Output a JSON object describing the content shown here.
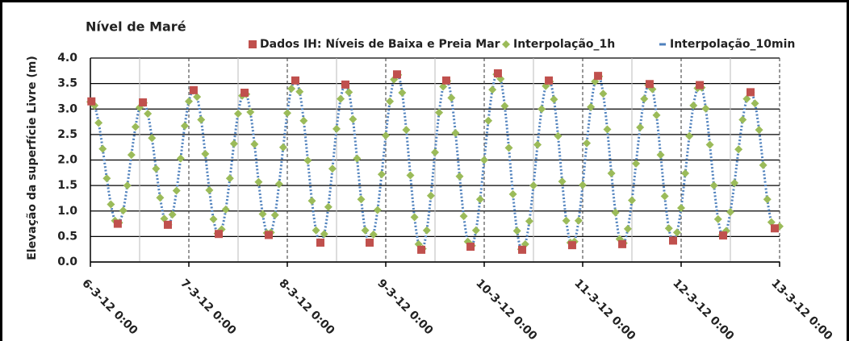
{
  "chart_data": {
    "type": "line",
    "title": "Nível de Maré",
    "y_label": "Elevação da superfície Livre (m)",
    "ylim": [
      0,
      4
    ],
    "yticks": [
      {
        "value": 0,
        "label": "0.0"
      },
      0.5,
      {
        "value": 1,
        "label": "1.0"
      },
      1.5,
      {
        "value": 2,
        "label": "2.0"
      },
      2.5,
      {
        "value": 3,
        "label": "3.0"
      },
      3.5,
      {
        "value": 4,
        "label": "4.0"
      }
    ],
    "xlim": [
      "6-3-12 0:00",
      "13-3-12 0:00"
    ],
    "xticks": [
      "6-3-12 0:00",
      "7-3-12 0:00",
      "8-3-12 0:00",
      "9-3-12 0:00",
      "10-3-12 0:00",
      "11-3-12 0:00",
      "12-3-12 0:00",
      "13-3-12 0:00"
    ],
    "xminorticks": [
      "6-3-12 12:00",
      "7-3-12 12:00",
      "8-3-12 12:00",
      "9-3-12 12:00",
      "10-3-12 12:00",
      "11-3-12 12:00",
      "12-3-12 12:00"
    ],
    "grid": true,
    "x": [
      "6-3-12 0:00",
      "6-3-12 1:00",
      "6-3-12 2:00",
      "6-3-12 3:00",
      "6-3-12 4:00",
      "6-3-12 5:00",
      "6-3-12 6:00",
      "6-3-12 7:00",
      "6-3-12 8:00",
      "6-3-12 9:00",
      "6-3-12 10:00",
      "6-3-12 11:00",
      "6-3-12 12:00",
      "6-3-12 13:00",
      "6-3-12 14:00",
      "6-3-12 15:00",
      "6-3-12 16:00",
      "6-3-12 17:00",
      "6-3-12 18:00",
      "6-3-12 19:00",
      "6-3-12 20:00",
      "6-3-12 21:00",
      "6-3-12 22:00",
      "6-3-12 23:00",
      "7-3-12 0:00",
      "7-3-12 1:00",
      "7-3-12 2:00",
      "7-3-12 3:00",
      "7-3-12 4:00",
      "7-3-12 5:00",
      "7-3-12 6:00",
      "7-3-12 7:00",
      "7-3-12 8:00",
      "7-3-12 9:00",
      "7-3-12 10:00",
      "7-3-12 11:00",
      "7-3-12 12:00",
      "7-3-12 13:00",
      "7-3-12 14:00",
      "7-3-12 15:00",
      "7-3-12 16:00",
      "7-3-12 17:00",
      "7-3-12 18:00",
      "7-3-12 19:00",
      "7-3-12 20:00",
      "7-3-12 21:00",
      "7-3-12 22:00",
      "7-3-12 23:00",
      "8-3-12 0:00",
      "8-3-12 1:00",
      "8-3-12 2:00",
      "8-3-12 3:00",
      "8-3-12 4:00",
      "8-3-12 5:00",
      "8-3-12 6:00",
      "8-3-12 7:00",
      "8-3-12 8:00",
      "8-3-12 9:00",
      "8-3-12 10:00",
      "8-3-12 11:00",
      "8-3-12 12:00",
      "8-3-12 13:00",
      "8-3-12 14:00",
      "8-3-12 15:00",
      "8-3-12 16:00",
      "8-3-12 17:00",
      "8-3-12 18:00",
      "8-3-12 19:00",
      "8-3-12 20:00",
      "8-3-12 21:00",
      "8-3-12 22:00",
      "8-3-12 23:00",
      "9-3-12 0:00",
      "9-3-12 1:00",
      "9-3-12 2:00",
      "9-3-12 3:00",
      "9-3-12 4:00",
      "9-3-12 5:00",
      "9-3-12 6:00",
      "9-3-12 7:00",
      "9-3-12 8:00",
      "9-3-12 9:00",
      "9-3-12 10:00",
      "9-3-12 11:00",
      "9-3-12 12:00",
      "9-3-12 13:00",
      "9-3-12 14:00",
      "9-3-12 15:00",
      "9-3-12 16:00",
      "9-3-12 17:00",
      "9-3-12 18:00",
      "9-3-12 19:00",
      "9-3-12 20:00",
      "9-3-12 21:00",
      "9-3-12 22:00",
      "9-3-12 23:00",
      "10-3-12 0:00",
      "10-3-12 1:00",
      "10-3-12 2:00",
      "10-3-12 3:00",
      "10-3-12 4:00",
      "10-3-12 5:00",
      "10-3-12 6:00",
      "10-3-12 7:00",
      "10-3-12 8:00",
      "10-3-12 9:00",
      "10-3-12 10:00",
      "10-3-12 11:00",
      "10-3-12 12:00",
      "10-3-12 13:00",
      "10-3-12 14:00",
      "10-3-12 15:00",
      "10-3-12 16:00",
      "10-3-12 17:00",
      "10-3-12 18:00",
      "10-3-12 19:00",
      "10-3-12 20:00",
      "10-3-12 21:00",
      "10-3-12 22:00",
      "10-3-12 23:00",
      "11-3-12 0:00",
      "11-3-12 1:00",
      "11-3-12 2:00",
      "11-3-12 3:00",
      "11-3-12 4:00",
      "11-3-12 5:00",
      "11-3-12 6:00",
      "11-3-12 7:00",
      "11-3-12 8:00",
      "11-3-12 9:00",
      "11-3-12 10:00",
      "11-3-12 11:00",
      "11-3-12 12:00",
      "11-3-12 13:00",
      "11-3-12 14:00",
      "11-3-12 15:00",
      "11-3-12 16:00",
      "11-3-12 17:00",
      "11-3-12 18:00",
      "11-3-12 19:00",
      "11-3-12 20:00",
      "11-3-12 21:00",
      "11-3-12 22:00",
      "11-3-12 23:00",
      "12-3-12 0:00",
      "12-3-12 1:00",
      "12-3-12 2:00",
      "12-3-12 3:00",
      "12-3-12 4:00",
      "12-3-12 5:00",
      "12-3-12 6:00",
      "12-3-12 7:00",
      "12-3-12 8:00",
      "12-3-12 9:00",
      "12-3-12 10:00",
      "12-3-12 11:00",
      "12-3-12 12:00",
      "12-3-12 13:00",
      "12-3-12 14:00",
      "12-3-12 15:00",
      "12-3-12 16:00",
      "12-3-12 17:00",
      "12-3-12 18:00",
      "12-3-12 19:00",
      "12-3-12 20:00",
      "12-3-12 21:00",
      "12-3-12 22:00",
      "12-3-12 23:00",
      "13-3-12 0:00"
    ],
    "series": [
      {
        "name": "Dados IH: Níveis de Baixa e Preia Mar",
        "color": "#c0504d",
        "marker": "square",
        "x": [
          "6-3-12 0:15",
          "6-3-12 6:40",
          "6-3-12 12:48",
          "6-3-12 18:53",
          "7-3-12 1:10",
          "7-3-12 7:17",
          "7-3-12 13:35",
          "7-3-12 19:28",
          "8-3-12 1:58",
          "8-3-12 8:04",
          "8-3-12 14:10",
          "8-3-12 20:04",
          "9-3-12 2:45",
          "9-3-12 8:40",
          "9-3-12 14:45",
          "9-3-12 20:40",
          "10-3-12 3:20",
          "10-3-12 9:15",
          "10-3-12 15:45",
          "10-3-12 21:26",
          "11-3-12 3:45",
          "11-3-12 9:39",
          "11-3-12 16:19",
          "11-3-12 22:02",
          "12-3-12 4:32",
          "12-3-12 10:14",
          "12-3-12 16:55",
          "12-3-12 22:49"
        ],
        "values": [
          3.15,
          0.75,
          3.13,
          0.73,
          3.37,
          0.55,
          3.32,
          0.53,
          3.56,
          0.38,
          3.48,
          0.38,
          3.68,
          0.24,
          3.56,
          0.3,
          3.7,
          0.24,
          3.56,
          0.33,
          3.65,
          0.35,
          3.49,
          0.42,
          3.47,
          0.52,
          3.33,
          0.66
        ]
      },
      {
        "name": "Interpolação_1h",
        "color": "#9bbb59",
        "marker": "diamond",
        "values": [
          3.14,
          3.07,
          2.73,
          2.22,
          1.64,
          1.13,
          0.81,
          0.77,
          1.01,
          1.5,
          2.1,
          2.65,
          3.03,
          3.12,
          2.91,
          2.43,
          1.83,
          1.26,
          0.85,
          0.73,
          0.93,
          1.4,
          2.03,
          2.67,
          3.15,
          3.36,
          3.24,
          2.79,
          2.12,
          1.41,
          0.84,
          0.56,
          0.64,
          1.03,
          1.64,
          2.32,
          2.91,
          3.26,
          3.29,
          2.94,
          2.31,
          1.57,
          0.94,
          0.57,
          0.58,
          0.92,
          1.53,
          2.25,
          2.92,
          3.4,
          3.56,
          3.34,
          2.77,
          1.99,
          1.2,
          0.62,
          0.38,
          0.55,
          1.08,
          1.83,
          2.61,
          3.2,
          3.47,
          3.33,
          2.8,
          2.03,
          1.23,
          0.62,
          0.38,
          0.54,
          1.02,
          1.72,
          2.48,
          3.15,
          3.58,
          3.67,
          3.32,
          2.59,
          1.7,
          0.88,
          0.35,
          0.26,
          0.62,
          1.3,
          2.15,
          2.93,
          3.44,
          3.55,
          3.22,
          2.53,
          1.68,
          0.9,
          0.4,
          0.32,
          0.62,
          1.23,
          2.0,
          2.77,
          3.38,
          3.68,
          3.59,
          3.06,
          2.24,
          1.33,
          0.61,
          0.25,
          0.35,
          0.8,
          1.5,
          2.3,
          3.0,
          3.45,
          3.54,
          3.19,
          2.47,
          1.58,
          0.81,
          0.38,
          0.4,
          0.81,
          1.51,
          2.33,
          3.04,
          3.54,
          3.64,
          3.3,
          2.6,
          1.74,
          0.97,
          0.45,
          0.37,
          0.65,
          1.21,
          1.93,
          2.64,
          3.2,
          3.47,
          3.39,
          2.88,
          2.1,
          1.29,
          0.66,
          0.42,
          0.58,
          1.06,
          1.74,
          2.47,
          3.07,
          3.41,
          3.42,
          3.01,
          2.3,
          1.5,
          0.84,
          0.53,
          0.61,
          0.98,
          1.55,
          2.21,
          2.79,
          3.2,
          3.33,
          3.11,
          2.59,
          1.9,
          1.23,
          0.78,
          0.66,
          0.7
        ]
      },
      {
        "name": "Interpolação_10min",
        "color": "#4f81bd",
        "marker": "dotted-line",
        "values": [
          3.14,
          3.07,
          2.73,
          2.22,
          1.64,
          1.13,
          0.81,
          0.77,
          1.01,
          1.5,
          2.1,
          2.65,
          3.03,
          3.12,
          2.91,
          2.43,
          1.83,
          1.26,
          0.85,
          0.73,
          0.93,
          1.4,
          2.03,
          2.67,
          3.15,
          3.36,
          3.24,
          2.79,
          2.12,
          1.41,
          0.84,
          0.56,
          0.64,
          1.03,
          1.64,
          2.32,
          2.91,
          3.26,
          3.29,
          2.94,
          2.31,
          1.57,
          0.94,
          0.57,
          0.58,
          0.92,
          1.53,
          2.25,
          2.92,
          3.4,
          3.56,
          3.34,
          2.77,
          1.99,
          1.2,
          0.62,
          0.38,
          0.55,
          1.08,
          1.83,
          2.61,
          3.2,
          3.47,
          3.33,
          2.8,
          2.03,
          1.23,
          0.62,
          0.38,
          0.54,
          1.02,
          1.72,
          2.48,
          3.15,
          3.58,
          3.67,
          3.32,
          2.59,
          1.7,
          0.88,
          0.35,
          0.26,
          0.62,
          1.3,
          2.15,
          2.93,
          3.44,
          3.55,
          3.22,
          2.53,
          1.68,
          0.9,
          0.4,
          0.32,
          0.62,
          1.23,
          2.0,
          2.77,
          3.38,
          3.68,
          3.59,
          3.06,
          2.24,
          1.33,
          0.61,
          0.25,
          0.35,
          0.8,
          1.5,
          2.3,
          3.0,
          3.45,
          3.54,
          3.19,
          2.47,
          1.58,
          0.81,
          0.38,
          0.4,
          0.81,
          1.51,
          2.33,
          3.04,
          3.54,
          3.64,
          3.3,
          2.6,
          1.74,
          0.97,
          0.45,
          0.37,
          0.65,
          1.21,
          1.93,
          2.64,
          3.2,
          3.47,
          3.39,
          2.88,
          2.1,
          1.29,
          0.66,
          0.42,
          0.58,
          1.06,
          1.74,
          2.47,
          3.07,
          3.41,
          3.42,
          3.01,
          2.3,
          1.5,
          0.84,
          0.53,
          0.61,
          0.98,
          1.55,
          2.21,
          2.79,
          3.2,
          3.33,
          3.11,
          2.59,
          1.9,
          1.23,
          0.78,
          0.66,
          0.7
        ]
      }
    ]
  }
}
